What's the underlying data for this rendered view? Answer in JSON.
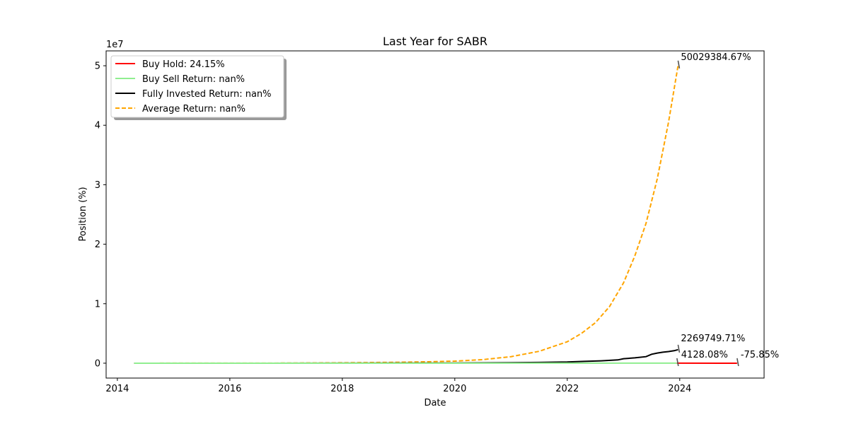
{
  "chart_data": {
    "type": "line",
    "title": "Last Year for SABR",
    "xlabel": "Date",
    "ylabel": "Position (%)",
    "y_scale_label": "1e7",
    "xlim": [
      2013.8,
      2025.5
    ],
    "ylim": [
      -2500000,
      52500000
    ],
    "x_ticks": [
      2014,
      2016,
      2018,
      2020,
      2022,
      2024
    ],
    "x_tick_labels": [
      "2014",
      "2016",
      "2018",
      "2020",
      "2022",
      "2024"
    ],
    "y_ticks": [
      0,
      10000000,
      20000000,
      30000000,
      40000000,
      50000000
    ],
    "y_tick_labels": [
      "0",
      "1",
      "2",
      "3",
      "4",
      "5"
    ],
    "legend_position": "top-left",
    "colors": {
      "buy_hold": "#ff0000",
      "buy_sell": "#90ee90",
      "fully_invested": "#000000",
      "average": "#ffa500"
    },
    "legend": [
      {
        "key": "buy_hold",
        "label": "Buy Hold: 24.15%"
      },
      {
        "key": "buy_sell",
        "label": "Buy Sell Return: nan%"
      },
      {
        "key": "fully_invested",
        "label": "Fully Invested Return: nan%"
      },
      {
        "key": "average",
        "label": "Average Return: nan%"
      }
    ],
    "series": [
      {
        "key": "average",
        "name": "Average Return",
        "style": "dashed",
        "x": [
          2014.3,
          2015,
          2016,
          2017,
          2018,
          2019,
          2019.5,
          2020,
          2020.5,
          2021,
          2021.5,
          2022,
          2022.25,
          2022.5,
          2022.75,
          2023,
          2023.2,
          2023.4,
          2023.6,
          2023.8,
          2023.97
        ],
        "y": [
          0,
          1000,
          5000,
          20000,
          60000,
          150000,
          230000,
          350000,
          600000,
          1100000,
          2000000,
          3600000,
          5000000,
          6800000,
          9500000,
          13500000,
          18000000,
          23500000,
          31000000,
          40500000,
          50029384.67
        ]
      },
      {
        "key": "fully_invested",
        "name": "Fully Invested Return",
        "style": "solid",
        "x": [
          2014.3,
          2016,
          2018,
          2019,
          2020,
          2021,
          2021.5,
          2022,
          2022.3,
          2022.6,
          2022.9,
          2023,
          2023.2,
          2023.4,
          2023.5,
          2023.6,
          2023.7,
          2023.8,
          2023.9,
          2023.97
        ],
        "y": [
          0,
          0,
          5000,
          15000,
          35000,
          80000,
          120000,
          200000,
          300000,
          400000,
          550000,
          750000,
          900000,
          1100000,
          1500000,
          1700000,
          1850000,
          1950000,
          2100000,
          2269749.71
        ]
      },
      {
        "key": "buy_sell",
        "name": "Buy Sell Return",
        "style": "solid",
        "x": [
          2014.3,
          2023.95
        ],
        "y": [
          0,
          4128.08
        ]
      },
      {
        "key": "buy_hold",
        "name": "Buy Hold",
        "style": "solid",
        "x": [
          2023.95,
          2025.02
        ],
        "y": [
          4128.08,
          -75.85
        ]
      }
    ],
    "annotations": [
      {
        "key": "average",
        "text": "50029384.67%",
        "x": 2023.97,
        "y": 50029384.67
      },
      {
        "key": "fully_invested",
        "text": "2269749.71%",
        "x": 2023.97,
        "y": 2269749.71
      },
      {
        "key": "buy_sell",
        "text": "4128.08%",
        "x": 2023.95,
        "y": 4128.08
      },
      {
        "key": "buy_hold",
        "text": "-75.85%",
        "x": 2025.02,
        "y": -75.85
      }
    ]
  }
}
